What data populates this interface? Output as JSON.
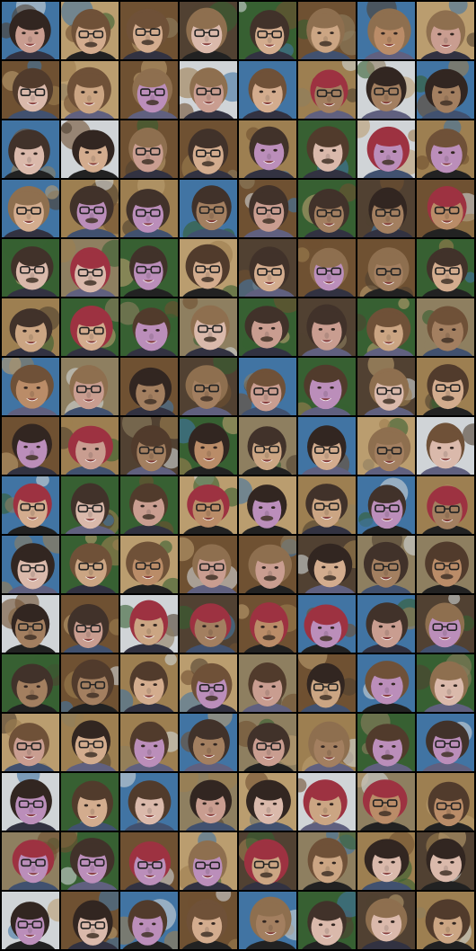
{
  "grid": {
    "columns": 8,
    "rows": 16,
    "tile_subject": "face-sample",
    "palette": {
      "separator": "#000000",
      "bg_variants": [
        "#2f5a2a",
        "#6a4a2a",
        "#8a7a5a",
        "#3a6fa0",
        "#cfd3d6",
        "#4a3a2a",
        "#9a7a4a",
        "#b89a6a"
      ],
      "skin_variants": [
        "#c9a27e",
        "#d2a98a",
        "#b88862",
        "#c79a8c",
        "#d9b7a8",
        "#b98ab8",
        "#a07a5a"
      ],
      "hair_variants": [
        "#2a1e18",
        "#4a3424",
        "#6a4a30",
        "#8a6a48",
        "#3a2a22",
        "#9a2a3a"
      ]
    }
  }
}
